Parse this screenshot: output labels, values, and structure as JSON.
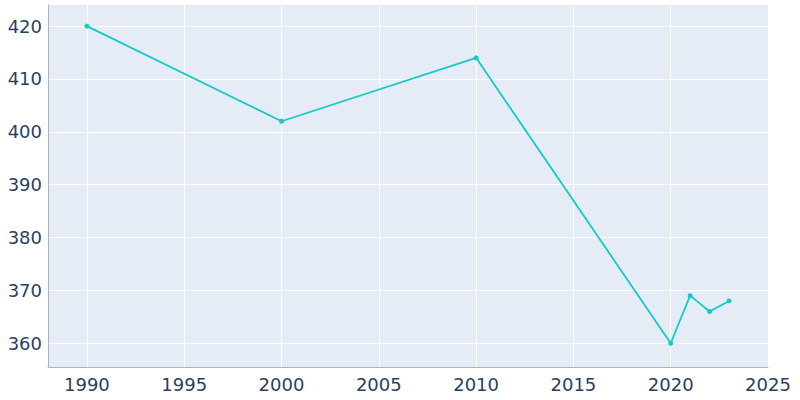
{
  "chart_data": {
    "type": "line",
    "x": [
      1990,
      2000,
      2010,
      2020,
      2021,
      2022,
      2023
    ],
    "values": [
      420,
      402,
      414,
      360,
      369,
      366,
      368
    ],
    "color": "#17c9c9",
    "marker": "circle",
    "xlim": [
      1988,
      2025
    ],
    "xticks": [
      1990,
      1995,
      2000,
      2005,
      2010,
      2015,
      2020,
      2025
    ],
    "ylim": [
      355.5,
      424
    ],
    "yticks": [
      360,
      370,
      380,
      390,
      400,
      410,
      420
    ],
    "grid": true
  }
}
